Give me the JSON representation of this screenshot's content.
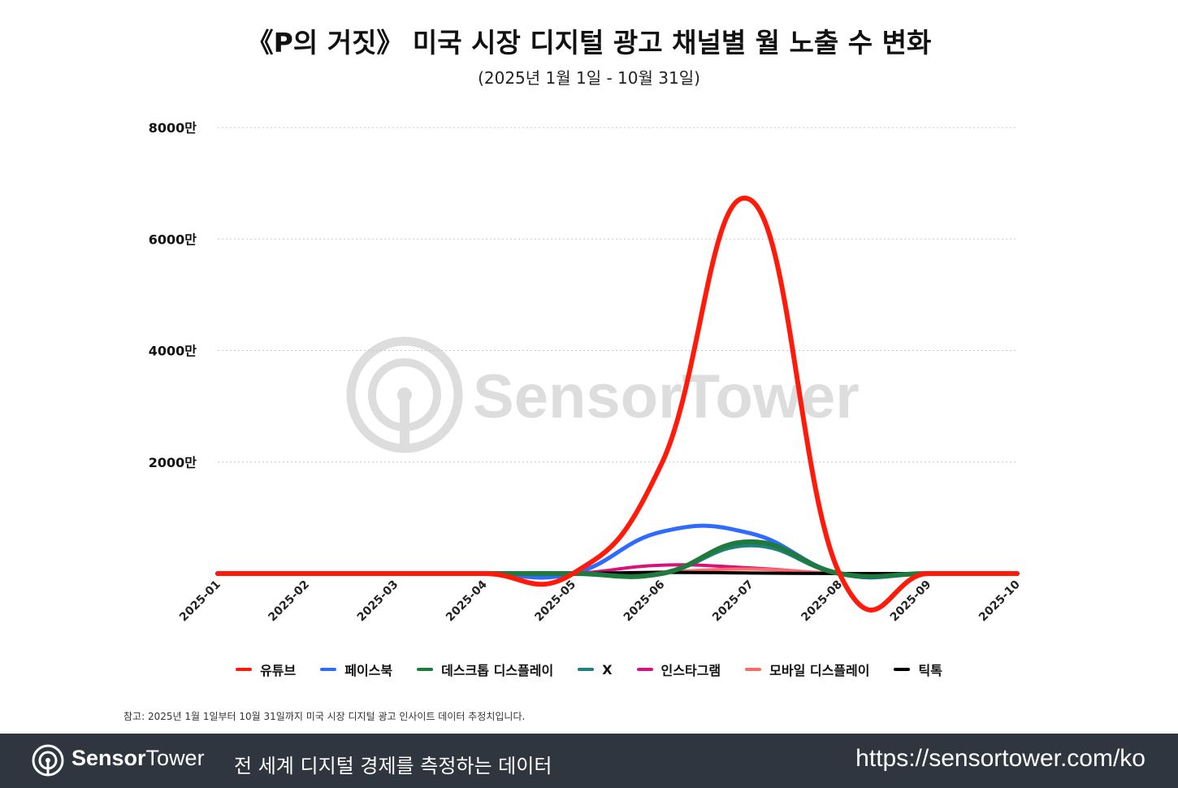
{
  "title": "《P의 거짓》 미국 시장 디지털 광고 채널별 월 노출 수 변화",
  "subtitle": "(2025년 1월 1일 - 10월 31일)",
  "footnote": "참고: 2025년 1월 1일부터 10월 31일까지 미국 시장 디지털 광고 인사이트 데이터 추정치입니다.",
  "footer": {
    "brand_bold": "Sensor",
    "brand_light": "Tower",
    "tagline": "전 세계 디지털 경제를 측정하는 데이터",
    "url": "https://sensortower.com/ko"
  },
  "watermark": {
    "text": "SensorTower",
    "icon": "sensor-tower-logo-icon"
  },
  "chart_data": {
    "type": "line",
    "smooth": true,
    "categories": [
      "2025-01",
      "2025-02",
      "2025-03",
      "2025-04",
      "2025-05",
      "2025-06",
      "2025-07",
      "2025-08",
      "2025-09",
      "2025-10"
    ],
    "yticks": [
      {
        "value": 20000000,
        "label": "2000만"
      },
      {
        "value": 40000000,
        "label": "4000만"
      },
      {
        "value": 60000000,
        "label": "6000만"
      },
      {
        "value": 80000000,
        "label": "8000만"
      }
    ],
    "ylim": [
      0,
      80000000
    ],
    "grid": "horizontal dotted",
    "legend_position": "bottom",
    "series": [
      {
        "name": "유튜브",
        "color": "#ff1a0a",
        "width": 6,
        "values": [
          0,
          0,
          0,
          0,
          0,
          19800000,
          67000000,
          0,
          0,
          0
        ]
      },
      {
        "name": "페이스북",
        "color": "#2f6bff",
        "width": 5,
        "values": [
          0,
          0,
          0,
          0,
          0,
          7500000,
          7200000,
          0,
          0,
          0
        ]
      },
      {
        "name": "데스크톱 디스플레이",
        "color": "#1f7a3d",
        "width": 6,
        "values": [
          0,
          0,
          0,
          0,
          0,
          0,
          5700000,
          0,
          0,
          0
        ]
      },
      {
        "name": "X",
        "color": "#1f8080",
        "width": 4,
        "values": [
          0,
          0,
          0,
          0,
          0,
          0,
          5000000,
          0,
          0,
          0
        ]
      },
      {
        "name": "인스타그램",
        "color": "#d6127c",
        "width": 4,
        "values": [
          0,
          0,
          0,
          0,
          0,
          1500000,
          1000000,
          0,
          0,
          0
        ]
      },
      {
        "name": "모바일 디스플레이",
        "color": "#ff6b6b",
        "width": 4,
        "values": [
          0,
          0,
          0,
          0,
          0,
          300000,
          800000,
          0,
          0,
          0
        ]
      },
      {
        "name": "틱톡",
        "color": "#000000",
        "width": 4,
        "values": [
          0,
          0,
          0,
          0,
          0,
          200000,
          100000,
          0,
          0,
          0
        ]
      }
    ],
    "draw_order": [
      "페이스북",
      "X",
      "인스타그램",
      "모바일 디스플레이",
      "틱톡",
      "데스크톱 디스플레이",
      "유튜브"
    ]
  }
}
